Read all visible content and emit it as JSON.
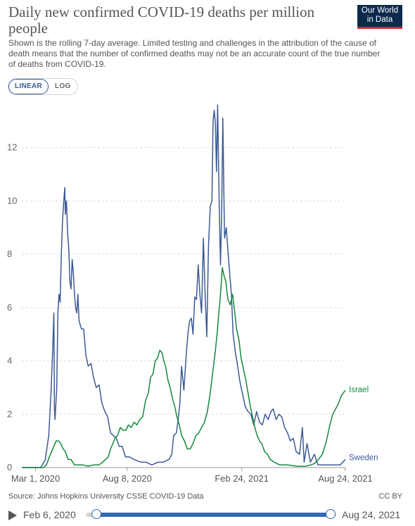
{
  "header": {
    "title": "Daily new confirmed COVID-19 deaths per million people",
    "subtitle": "Shown is the rolling 7-day average. Limited testing and challenges in the attribution of the cause of death means that the number of confirmed deaths may not be an accurate count of the true number of deaths from COVID-19.",
    "logo_line1": "Our World",
    "logo_line2": "in Data"
  },
  "controls": {
    "linear_label": "LINEAR",
    "log_label": "LOG",
    "active": "linear"
  },
  "footer": {
    "source": "Source: Johns Hopkins University CSSE COVID-19 Data",
    "license": "CC BY"
  },
  "timeline": {
    "start_label": "Feb 6, 2020",
    "end_label": "Aug 24, 2021"
  },
  "colors": {
    "Sweden": "#3c5a96",
    "Israel": "#138a3a"
  },
  "chart_data": {
    "type": "line",
    "x_axis": "date",
    "x_start": "2020-02-06",
    "x_end": "2021-08-24",
    "x_ticks": [
      {
        "date": "2020-03-01",
        "label": "Mar 1, 2020"
      },
      {
        "date": "2020-08-08",
        "label": "Aug 8, 2020"
      },
      {
        "date": "2021-02-24",
        "label": "Feb 24, 2021"
      },
      {
        "date": "2021-08-24",
        "label": "Aug 24, 2021"
      }
    ],
    "ylim": [
      0,
      13.6
    ],
    "y_ticks": [
      0,
      2,
      4,
      6,
      8,
      10,
      12
    ],
    "grid": true,
    "legend": "line-end labels",
    "series": [
      {
        "name": "Sweden",
        "points": [
          [
            "2020-02-06",
            0
          ],
          [
            "2020-03-10",
            0
          ],
          [
            "2020-03-18",
            0.3
          ],
          [
            "2020-03-24",
            1.2
          ],
          [
            "2020-03-28",
            2.8
          ],
          [
            "2020-03-31",
            4.5
          ],
          [
            "2020-04-02",
            5.8
          ],
          [
            "2020-04-03",
            2.2
          ],
          [
            "2020-04-04",
            1.8
          ],
          [
            "2020-04-07",
            3.0
          ],
          [
            "2020-04-09",
            5.8
          ],
          [
            "2020-04-11",
            6.5
          ],
          [
            "2020-04-13",
            6.2
          ],
          [
            "2020-04-15",
            8.0
          ],
          [
            "2020-04-17",
            9.2
          ],
          [
            "2020-04-19",
            9.9
          ],
          [
            "2020-04-21",
            10.5
          ],
          [
            "2020-04-22",
            9.5
          ],
          [
            "2020-04-24",
            10.0
          ],
          [
            "2020-04-26",
            8.8
          ],
          [
            "2020-04-28",
            8.2
          ],
          [
            "2020-04-30",
            7.0
          ],
          [
            "2020-05-02",
            6.7
          ],
          [
            "2020-05-04",
            7.8
          ],
          [
            "2020-05-06",
            7.3
          ],
          [
            "2020-05-08",
            6.5
          ],
          [
            "2020-05-10",
            6.0
          ],
          [
            "2020-05-12",
            5.8
          ],
          [
            "2020-05-14",
            6.5
          ],
          [
            "2020-05-16",
            5.5
          ],
          [
            "2020-05-20",
            5.2
          ],
          [
            "2020-05-24",
            5.2
          ],
          [
            "2020-05-28",
            4.2
          ],
          [
            "2020-06-01",
            3.8
          ],
          [
            "2020-06-06",
            3.9
          ],
          [
            "2020-06-10",
            3.4
          ],
          [
            "2020-06-15",
            3.0
          ],
          [
            "2020-06-20",
            3.1
          ],
          [
            "2020-06-25",
            2.4
          ],
          [
            "2020-06-30",
            2.1
          ],
          [
            "2020-07-05",
            1.9
          ],
          [
            "2020-07-10",
            1.3
          ],
          [
            "2020-07-15",
            1.2
          ],
          [
            "2020-07-20",
            1.1
          ],
          [
            "2020-07-25",
            0.8
          ],
          [
            "2020-07-30",
            0.8
          ],
          [
            "2020-08-05",
            0.4
          ],
          [
            "2020-08-12",
            0.4
          ],
          [
            "2020-08-20",
            0.3
          ],
          [
            "2020-09-01",
            0.2
          ],
          [
            "2020-09-10",
            0.2
          ],
          [
            "2020-09-20",
            0.1
          ],
          [
            "2020-10-01",
            0.2
          ],
          [
            "2020-10-10",
            0.2
          ],
          [
            "2020-10-20",
            0.3
          ],
          [
            "2020-10-25",
            0.5
          ],
          [
            "2020-10-28",
            1.2
          ],
          [
            "2020-11-02",
            1.3
          ],
          [
            "2020-11-05",
            1.8
          ],
          [
            "2020-11-08",
            2.4
          ],
          [
            "2020-11-11",
            3.8
          ],
          [
            "2020-11-15",
            2.9
          ],
          [
            "2020-11-19",
            4.2
          ],
          [
            "2020-11-22",
            5.0
          ],
          [
            "2020-11-25",
            5.5
          ],
          [
            "2020-11-28",
            5.6
          ],
          [
            "2020-12-01",
            5.0
          ],
          [
            "2020-12-04",
            6.4
          ],
          [
            "2020-12-07",
            6.3
          ],
          [
            "2020-12-10",
            7.6
          ],
          [
            "2020-12-13",
            6.5
          ],
          [
            "2020-12-16",
            5.8
          ],
          [
            "2020-12-19",
            8.6
          ],
          [
            "2020-12-22",
            6.6
          ],
          [
            "2020-12-25",
            4.9
          ],
          [
            "2020-12-28",
            8.3
          ],
          [
            "2020-12-31",
            9.8
          ],
          [
            "2021-01-03",
            10.0
          ],
          [
            "2021-01-05",
            13.0
          ],
          [
            "2021-01-07",
            13.4
          ],
          [
            "2021-01-09",
            12.9
          ],
          [
            "2021-01-11",
            11.1
          ],
          [
            "2021-01-13",
            13.6
          ],
          [
            "2021-01-16",
            9.5
          ],
          [
            "2021-01-18",
            7.6
          ],
          [
            "2021-01-20",
            9.5
          ],
          [
            "2021-01-22",
            13.1
          ],
          [
            "2021-01-25",
            8.6
          ],
          [
            "2021-01-28",
            9.0
          ],
          [
            "2021-01-31",
            8.1
          ],
          [
            "2021-02-03",
            7.3
          ],
          [
            "2021-02-06",
            6.5
          ],
          [
            "2021-02-09",
            5.0
          ],
          [
            "2021-02-13",
            4.3
          ],
          [
            "2021-02-17",
            3.8
          ],
          [
            "2021-02-21",
            3.2
          ],
          [
            "2021-02-25",
            2.8
          ],
          [
            "2021-03-02",
            2.3
          ],
          [
            "2021-03-07",
            2.1
          ],
          [
            "2021-03-12",
            2.0
          ],
          [
            "2021-03-17",
            1.6
          ],
          [
            "2021-03-22",
            2.1
          ],
          [
            "2021-03-27",
            1.7
          ],
          [
            "2021-04-01",
            1.6
          ],
          [
            "2021-04-06",
            2.0
          ],
          [
            "2021-04-11",
            1.8
          ],
          [
            "2021-04-16",
            2.1
          ],
          [
            "2021-04-20",
            2.2
          ],
          [
            "2021-04-25",
            1.8
          ],
          [
            "2021-04-30",
            2.0
          ],
          [
            "2021-05-05",
            1.9
          ],
          [
            "2021-05-10",
            1.5
          ],
          [
            "2021-05-15",
            1.3
          ],
          [
            "2021-05-20",
            1.0
          ],
          [
            "2021-05-25",
            1.1
          ],
          [
            "2021-05-30",
            0.6
          ],
          [
            "2021-06-05",
            0.5
          ],
          [
            "2021-06-10",
            1.5
          ],
          [
            "2021-06-13",
            0.2
          ],
          [
            "2021-06-18",
            0.9
          ],
          [
            "2021-06-24",
            0.2
          ],
          [
            "2021-07-01",
            0.5
          ],
          [
            "2021-07-07",
            0.1
          ],
          [
            "2021-07-15",
            0.1
          ],
          [
            "2021-07-25",
            0.1
          ],
          [
            "2021-08-05",
            0.1
          ],
          [
            "2021-08-15",
            0.1
          ],
          [
            "2021-08-24",
            0.3
          ]
        ]
      },
      {
        "name": "Israel",
        "points": [
          [
            "2020-02-06",
            0
          ],
          [
            "2020-03-15",
            0
          ],
          [
            "2020-03-20",
            0.1
          ],
          [
            "2020-03-25",
            0.4
          ],
          [
            "2020-03-29",
            0.6
          ],
          [
            "2020-04-02",
            0.8
          ],
          [
            "2020-04-06",
            1.0
          ],
          [
            "2020-04-10",
            1.0
          ],
          [
            "2020-04-14",
            0.9
          ],
          [
            "2020-04-18",
            0.7
          ],
          [
            "2020-04-22",
            0.6
          ],
          [
            "2020-04-27",
            0.3
          ],
          [
            "2020-05-02",
            0.3
          ],
          [
            "2020-05-08",
            0.1
          ],
          [
            "2020-05-15",
            0.1
          ],
          [
            "2020-05-22",
            0.1
          ],
          [
            "2020-06-01",
            0.05
          ],
          [
            "2020-06-10",
            0.1
          ],
          [
            "2020-06-20",
            0.1
          ],
          [
            "2020-06-26",
            0.2
          ],
          [
            "2020-07-01",
            0.3
          ],
          [
            "2020-07-06",
            0.4
          ],
          [
            "2020-07-10",
            0.7
          ],
          [
            "2020-07-14",
            0.9
          ],
          [
            "2020-07-18",
            1.1
          ],
          [
            "2020-07-22",
            1.2
          ],
          [
            "2020-07-27",
            1.5
          ],
          [
            "2020-08-01",
            1.4
          ],
          [
            "2020-08-06",
            1.4
          ],
          [
            "2020-08-10",
            1.6
          ],
          [
            "2020-08-15",
            1.5
          ],
          [
            "2020-08-20",
            1.7
          ],
          [
            "2020-08-25",
            1.6
          ],
          [
            "2020-08-30",
            1.8
          ],
          [
            "2020-09-04",
            1.9
          ],
          [
            "2020-09-09",
            2.5
          ],
          [
            "2020-09-14",
            2.8
          ],
          [
            "2020-09-18",
            3.4
          ],
          [
            "2020-09-22",
            3.5
          ],
          [
            "2020-09-26",
            4.0
          ],
          [
            "2020-09-30",
            4.1
          ],
          [
            "2020-10-04",
            4.4
          ],
          [
            "2020-10-08",
            4.3
          ],
          [
            "2020-10-11",
            4.0
          ],
          [
            "2020-10-14",
            3.8
          ],
          [
            "2020-10-18",
            3.3
          ],
          [
            "2020-10-22",
            3.0
          ],
          [
            "2020-10-26",
            2.6
          ],
          [
            "2020-10-30",
            2.3
          ],
          [
            "2020-11-03",
            1.9
          ],
          [
            "2020-11-07",
            1.6
          ],
          [
            "2020-11-11",
            1.2
          ],
          [
            "2020-11-16",
            1.0
          ],
          [
            "2020-11-21",
            0.7
          ],
          [
            "2020-11-26",
            0.7
          ],
          [
            "2020-12-01",
            0.9
          ],
          [
            "2020-12-06",
            1.2
          ],
          [
            "2020-12-11",
            1.3
          ],
          [
            "2020-12-16",
            1.5
          ],
          [
            "2020-12-21",
            1.7
          ],
          [
            "2020-12-26",
            2.1
          ],
          [
            "2020-12-31",
            2.8
          ],
          [
            "2021-01-04",
            3.5
          ],
          [
            "2021-01-08",
            4.2
          ],
          [
            "2021-01-12",
            5.0
          ],
          [
            "2021-01-15",
            5.8
          ],
          [
            "2021-01-18",
            6.5
          ],
          [
            "2021-01-21",
            7.5
          ],
          [
            "2021-01-24",
            7.2
          ],
          [
            "2021-01-27",
            7.0
          ],
          [
            "2021-01-31",
            6.3
          ],
          [
            "2021-02-04",
            6.1
          ],
          [
            "2021-02-08",
            6.5
          ],
          [
            "2021-02-12",
            5.8
          ],
          [
            "2021-02-15",
            5.2
          ],
          [
            "2021-02-19",
            4.8
          ],
          [
            "2021-02-23",
            4.1
          ],
          [
            "2021-02-27",
            3.7
          ],
          [
            "2021-03-03",
            3.3
          ],
          [
            "2021-03-07",
            2.8
          ],
          [
            "2021-03-11",
            2.3
          ],
          [
            "2021-03-15",
            1.9
          ],
          [
            "2021-03-19",
            1.5
          ],
          [
            "2021-03-23",
            1.2
          ],
          [
            "2021-03-27",
            1.0
          ],
          [
            "2021-03-31",
            0.9
          ],
          [
            "2021-04-05",
            0.6
          ],
          [
            "2021-04-10",
            0.5
          ],
          [
            "2021-04-15",
            0.3
          ],
          [
            "2021-04-22",
            0.2
          ],
          [
            "2021-05-01",
            0.1
          ],
          [
            "2021-05-15",
            0.1
          ],
          [
            "2021-06-01",
            0.05
          ],
          [
            "2021-06-15",
            0.05
          ],
          [
            "2021-06-25",
            0.1
          ],
          [
            "2021-07-01",
            0.15
          ],
          [
            "2021-07-08",
            0.3
          ],
          [
            "2021-07-15",
            0.5
          ],
          [
            "2021-07-22",
            1.0
          ],
          [
            "2021-07-28",
            1.6
          ],
          [
            "2021-08-02",
            2.0
          ],
          [
            "2021-08-07",
            2.2
          ],
          [
            "2021-08-12",
            2.4
          ],
          [
            "2021-08-17",
            2.7
          ],
          [
            "2021-08-24",
            2.9
          ]
        ]
      }
    ]
  }
}
